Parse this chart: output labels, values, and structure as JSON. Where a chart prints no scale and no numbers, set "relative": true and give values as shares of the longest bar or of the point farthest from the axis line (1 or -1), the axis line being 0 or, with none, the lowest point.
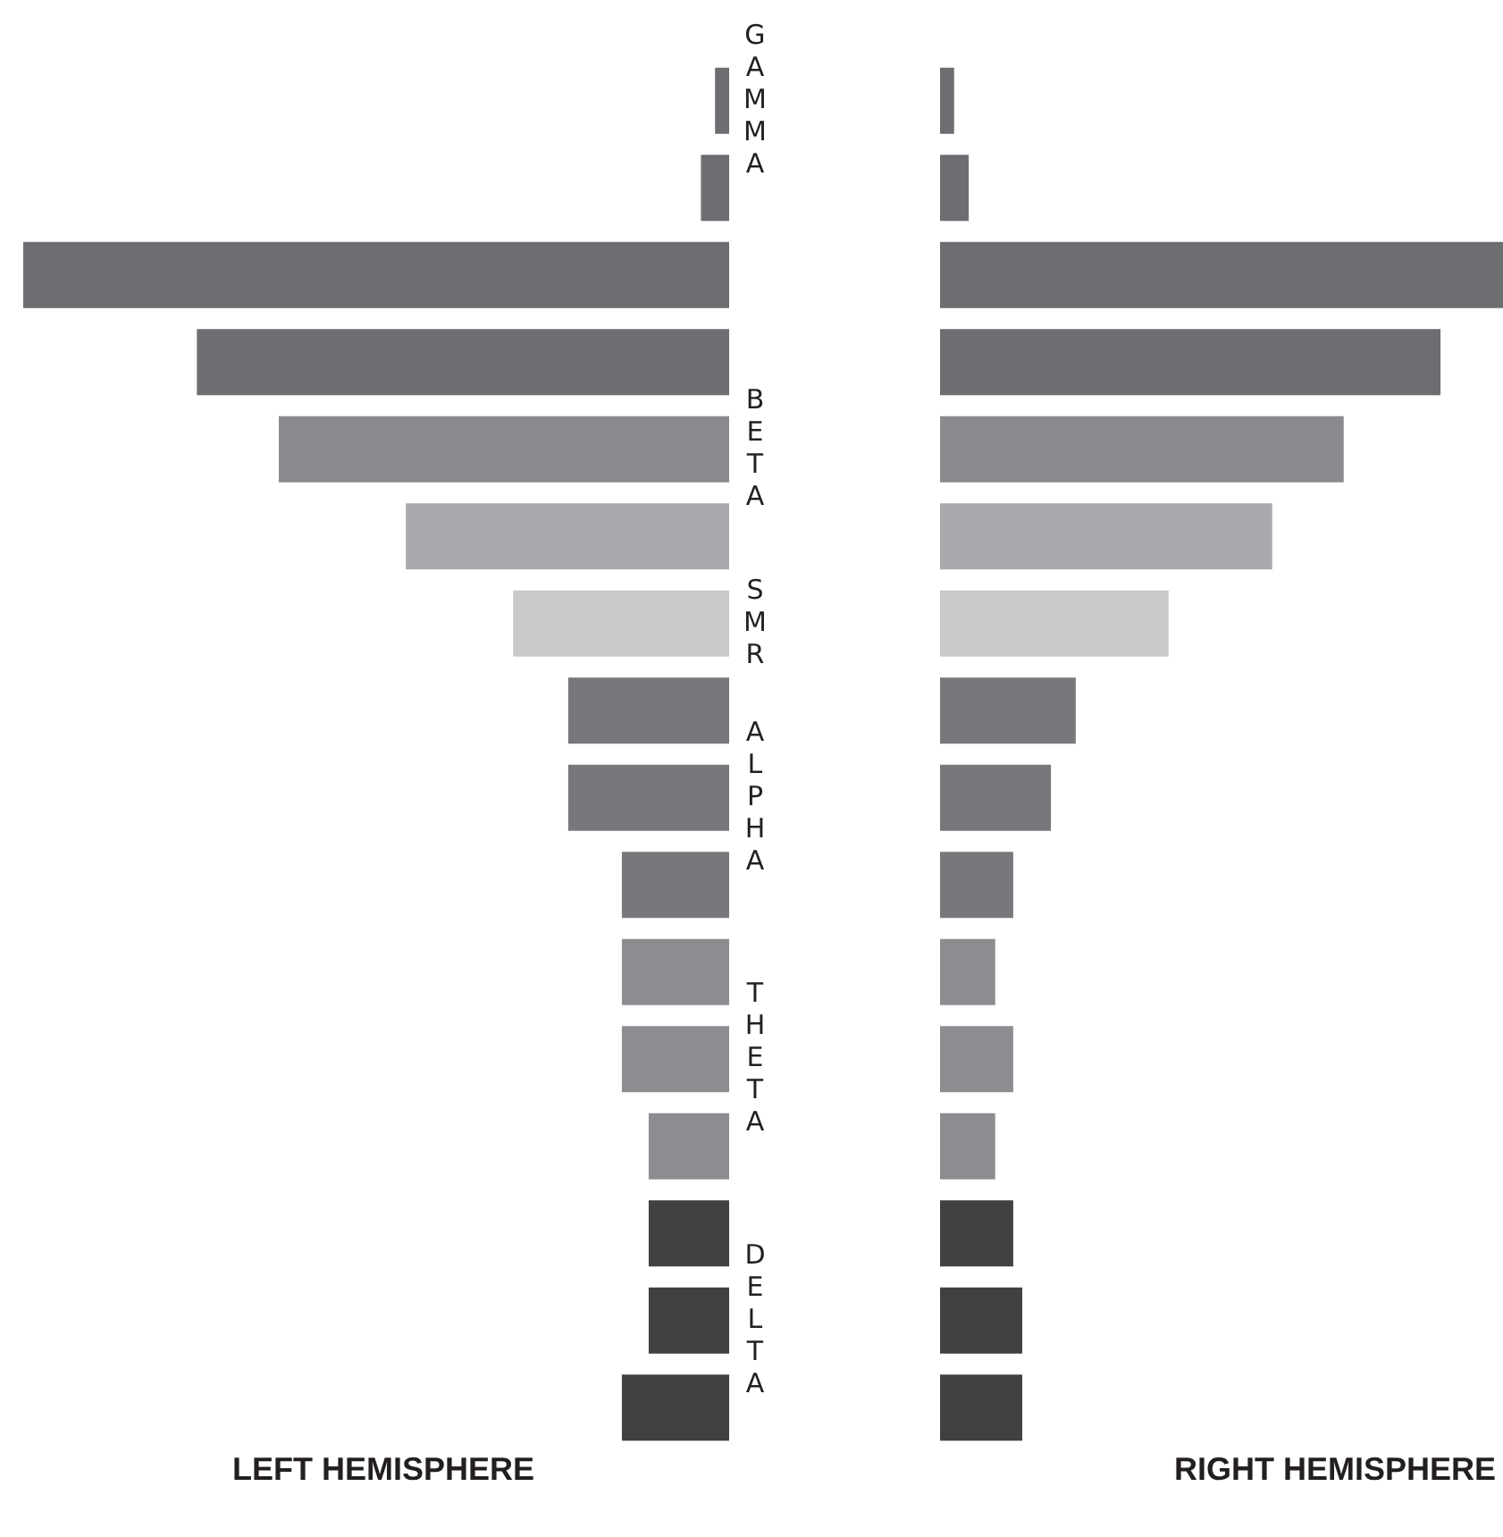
{
  "chart_data": [
    {
      "type": "bar",
      "orientation": "horizontal",
      "relative": true,
      "xlabel": "LEFT HEMISPHERE",
      "categories": [
        "GAMMA",
        null,
        null,
        null,
        "BETA",
        null,
        "SMR",
        null,
        "ALPHA",
        null,
        null,
        "THETA",
        null,
        null,
        "DELTA",
        null
      ],
      "values": [
        -0.02,
        -0.04,
        -1,
        -0.754,
        -0.638,
        -0.458,
        -0.306,
        -0.228,
        -0.228,
        -0.152,
        -0.152,
        -0.152,
        -0.114,
        -0.114,
        -0.114,
        -0.152
      ],
      "colors": [
        "#6d6e71",
        "#6d6e71",
        "#6d6e71",
        "#6d6e71",
        "#8a8b8e",
        "#a7a9ac",
        "#c8c9cb",
        "#77787b",
        "#77787b",
        "#77787b",
        "#8c8d90",
        "#8c8d90",
        "#8c8d90",
        "#414042",
        "#414042",
        "#414042"
      ]
    },
    {
      "type": "bar",
      "orientation": "horizontal",
      "relative": true,
      "xlabel": "RIGHT HEMISPHERE",
      "tick_labels": false,
      "categories": [
        "GAMMA",
        null,
        null,
        null,
        "BETA",
        null,
        "SMR",
        null,
        "ALPHA",
        null,
        null,
        "THETA",
        null,
        null,
        "DELTA",
        null
      ],
      "values": [
        0.025,
        0.051,
        1,
        0.889,
        0.717,
        0.59,
        0.406,
        0.241,
        0.197,
        0.13,
        0.098,
        0.13,
        0.098,
        0.13,
        0.146,
        0.146
      ],
      "colors": [
        "#6d6e71",
        "#6d6e71",
        "#6d6e71",
        "#6d6e71",
        "#8a8b8e",
        "#a7a9ac",
        "#c8c9cb",
        "#77787b",
        "#77787b",
        "#77787b",
        "#8c8d90",
        "#8c8d90",
        "#8c8d90",
        "#414042",
        "#414042",
        "#414042"
      ]
    }
  ]
}
